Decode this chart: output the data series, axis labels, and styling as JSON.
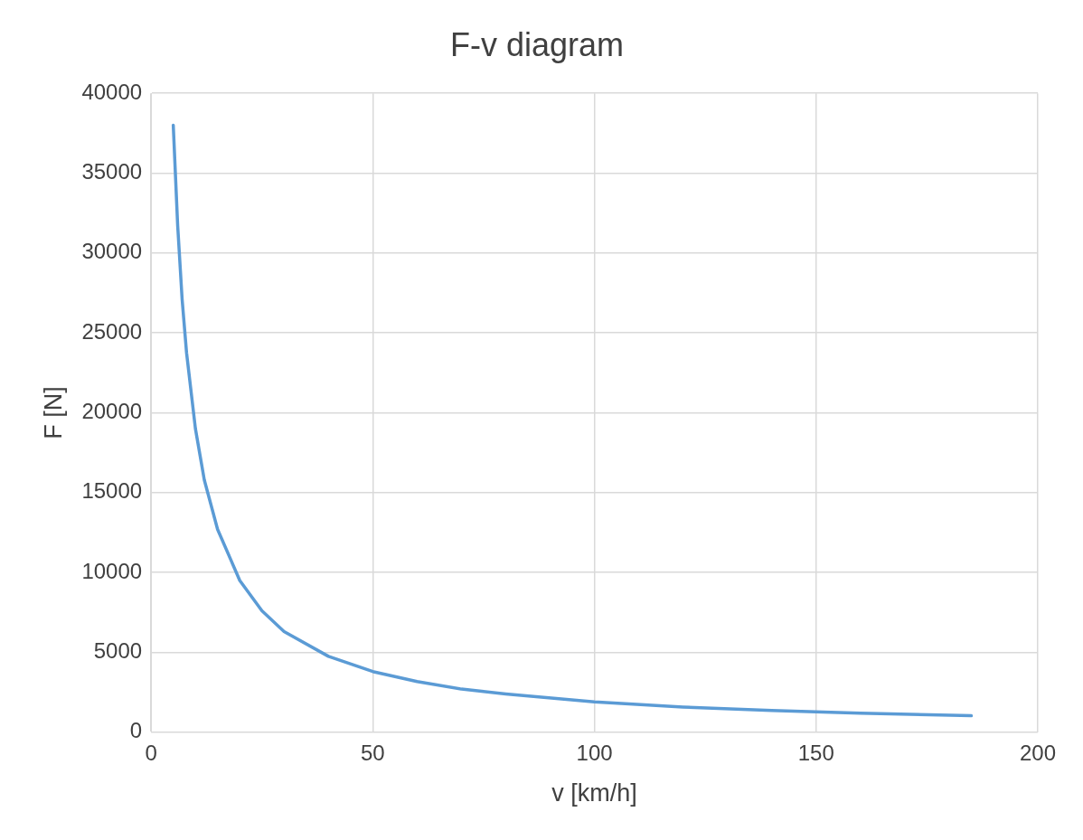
{
  "chart_data": {
    "type": "line",
    "title": "F-v diagram",
    "xlabel": "v [km/h]",
    "ylabel": "F [N]",
    "x": [
      5,
      6,
      7,
      8,
      10,
      12,
      15,
      20,
      25,
      30,
      40,
      50,
      60,
      70,
      80,
      100,
      120,
      140,
      160,
      185
    ],
    "series": [
      {
        "color": "#5b9bd5",
        "values": [
          38000,
          31700,
          27100,
          23750,
          19000,
          15800,
          12700,
          9500,
          7600,
          6300,
          4750,
          3800,
          3170,
          2700,
          2400,
          1900,
          1580,
          1360,
          1190,
          1030
        ]
      }
    ],
    "xlim": [
      0,
      200
    ],
    "xticks": [
      0,
      50,
      100,
      150,
      200
    ],
    "ylim": [
      0,
      40000
    ],
    "yticks": [
      0,
      5000,
      10000,
      15000,
      20000,
      25000,
      30000,
      35000,
      40000
    ],
    "grid": true,
    "legend": false,
    "marker": "none",
    "line_style": "solid"
  }
}
